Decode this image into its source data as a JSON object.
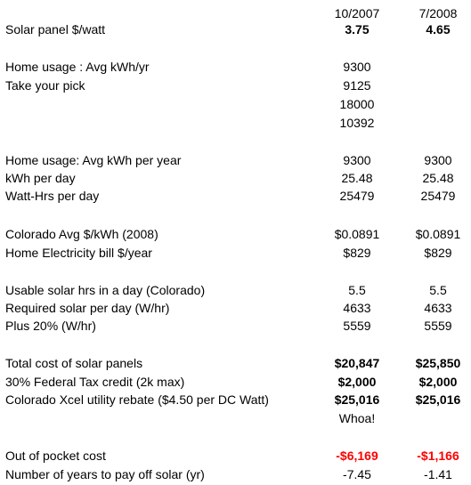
{
  "header": {
    "col1": "10/2007",
    "col2": "7/2008"
  },
  "rows": [
    {
      "label": "Solar panel $/watt",
      "v1": "3.75",
      "v2": "4.65",
      "style": "bold"
    },
    {
      "label": "Home usage : Avg kWh/yr",
      "v1": "9300",
      "v2": ""
    },
    {
      "label": "Take your pick",
      "v1": "9125",
      "v2": ""
    },
    {
      "label": "",
      "v1": "18000",
      "v2": ""
    },
    {
      "label": "",
      "v1": "10392",
      "v2": ""
    },
    {
      "label": "Home usage: Avg kWh per year",
      "v1": "9300",
      "v2": "9300"
    },
    {
      "label": "kWh per day",
      "v1": "25.48",
      "v2": "25.48"
    },
    {
      "label": "Watt-Hrs per day",
      "v1": "25479",
      "v2": "25479"
    },
    {
      "label": "Colorado Avg $/kWh (2008)",
      "v1": "$0.0891",
      "v2": "$0.0891"
    },
    {
      "label": "Home Electricity bill $/year",
      "v1": "$829",
      "v2": "$829"
    },
    {
      "label": "Usable solar hrs in a day (Colorado)",
      "v1": "5.5",
      "v2": "5.5"
    },
    {
      "label": "Required solar per day (W/hr)",
      "v1": "4633",
      "v2": "4633"
    },
    {
      "label": "Plus 20% (W/hr)",
      "v1": "5559",
      "v2": "5559"
    },
    {
      "label": "Total cost of solar panels",
      "v1": "$20,847",
      "v2": "$25,850",
      "style": "bold"
    },
    {
      "label": "30% Federal Tax credit (2k max)",
      "v1": "$2,000",
      "v2": "$2,000",
      "style": "bold"
    },
    {
      "label": "Colorado Xcel utility rebate ($4.50 per DC Watt)",
      "v1": "$25,016",
      "v2": "$25,016",
      "style": "bold"
    },
    {
      "label": "",
      "v1": "Whoa!",
      "v2": ""
    },
    {
      "label": "Out of pocket cost",
      "v1": "-$6,169",
      "v2": "-$1,166",
      "style": "red"
    },
    {
      "label": "Number of years to pay off solar (yr)",
      "v1": "-7.45",
      "v2": "-1.41"
    }
  ]
}
